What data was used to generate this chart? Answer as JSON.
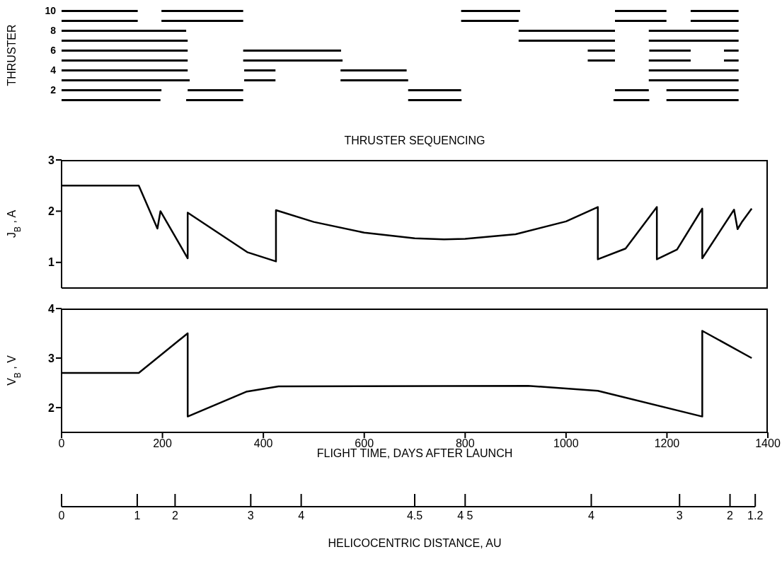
{
  "chart_data": [
    {
      "type": "bar",
      "orientation": "horizontal",
      "title": "THRUSTER SEQUENCING",
      "ylabel": "THRUSTER",
      "categories": [
        "10",
        null,
        "8",
        null,
        "6",
        null,
        "4",
        null,
        "2",
        null
      ],
      "xlim": [
        0,
        1400
      ],
      "tick_labels": "y",
      "series": [
        {
          "color": "#000000",
          "base": [
            0,
            0,
            0,
            0,
            0,
            0,
            0,
            0,
            0,
            0
          ],
          "values": [
            151,
            151,
            247,
            250,
            250,
            250,
            250,
            254,
            198,
            196
          ]
        },
        {
          "color": "#000000",
          "base": [
            198,
            198,
            906,
            906,
            360,
            360,
            362,
            362,
            250,
            247
          ],
          "values": [
            162,
            162,
            191,
            191,
            194,
            197,
            62,
            62,
            110,
            113
          ]
        },
        {
          "color": "#000000",
          "base": [
            792,
            792,
            1164,
            1164,
            1043,
            1043,
            553,
            553,
            687,
            687
          ],
          "values": [
            117,
            114,
            178,
            178,
            54,
            54,
            131,
            134,
            105,
            106
          ]
        },
        {
          "color": "#000000",
          "base": [
            1097,
            1097,
            null,
            null,
            1165,
            1164,
            1164,
            1164,
            1097,
            1094
          ],
          "values": [
            102,
            102,
            null,
            null,
            82,
            83,
            178,
            178,
            67,
            71
          ]
        },
        {
          "color": "#000000",
          "base": [
            1247,
            1247,
            null,
            null,
            1313,
            1313,
            null,
            null,
            1199,
            1199
          ],
          "values": [
            95,
            95,
            null,
            null,
            29,
            29,
            null,
            null,
            143,
            143
          ]
        }
      ]
    },
    {
      "type": "line",
      "ylabel": "J$_{B}$, A",
      "xlim": [
        0,
        1400
      ],
      "xticks": [
        0,
        200,
        400,
        600,
        800,
        1000,
        1200,
        1400
      ],
      "ylim": [
        0.5,
        3
      ],
      "yticks": [
        1,
        2,
        3
      ],
      "tick_labels": "y",
      "marker": "none",
      "series": [
        {
          "color": "#000000",
          "x": [
            0,
            153,
            190,
            196,
            250,
            250,
            368,
            425,
            425,
            500,
            600,
            700,
            758,
            800,
            900,
            1000,
            1063,
            1063,
            1118,
            1180,
            1180,
            1220,
            1270,
            1270,
            1333,
            1340,
            1348,
            1368
          ],
          "values": [
            2.5,
            2.5,
            1.66,
            2.0,
            1.08,
            1.97,
            1.2,
            1.02,
            2.02,
            1.79,
            1.58,
            1.47,
            1.45,
            1.46,
            1.55,
            1.8,
            2.08,
            1.06,
            1.27,
            2.08,
            1.06,
            1.25,
            2.05,
            1.08,
            2.03,
            1.65,
            1.78,
            2.05
          ]
        }
      ]
    },
    {
      "type": "line",
      "ylabel": "V$_{B}$, V",
      "xlabel": "FLIGHT TIME, DAYS AFTER LAUNCH",
      "xlim": [
        0,
        1400
      ],
      "xticks": [
        0,
        200,
        400,
        600,
        800,
        1000,
        1200,
        1400
      ],
      "ylim": [
        1.5,
        4
      ],
      "yticks": [
        2,
        3,
        4
      ],
      "marker": "none",
      "series": [
        {
          "color": "#000000",
          "x": [
            0,
            153,
            250,
            250,
            366,
            430,
            925,
            1063,
            1270,
            1270,
            1368
          ],
          "values": [
            2.7,
            2.7,
            3.5,
            1.82,
            2.32,
            2.43,
            2.44,
            2.34,
            1.82,
            3.55,
            3.0
          ]
        }
      ]
    },
    {
      "type": "other",
      "xlabel": "HELICOCENTRIC DISTANCE, AU",
      "categories": [
        "0",
        null,
        null,
        null,
        null,
        null,
        "1",
        null,
        null,
        "2",
        null,
        null,
        null,
        null,
        null,
        "3",
        null,
        null,
        null,
        "4",
        null,
        null,
        null,
        null,
        null,
        null,
        null,
        null,
        "4.5",
        null,
        null,
        null,
        "4 5",
        null,
        null,
        null,
        null,
        null,
        null,
        null,
        null,
        null,
        "4",
        null,
        null,
        null,
        null,
        null,
        null,
        "3",
        null,
        null,
        null,
        "2",
        null,
        "1.2",
        null
      ]
    }
  ]
}
